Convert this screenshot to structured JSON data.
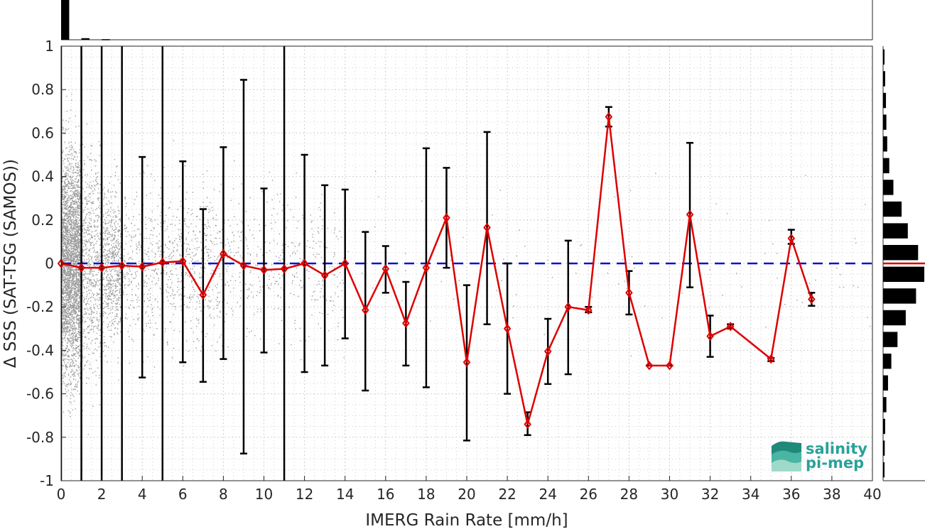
{
  "chart_data": {
    "type": "scatter",
    "xlabel": "IMERG Rain Rate [mm/h]",
    "ylabel": "Δ SSS (SAT-TSG (SAMOS))",
    "xlim": [
      0,
      40
    ],
    "ylim": [
      -1,
      1
    ],
    "xticks": [
      "0",
      "2",
      "4",
      "6",
      "8",
      "10",
      "12",
      "14",
      "16",
      "18",
      "20",
      "22",
      "24",
      "26",
      "28",
      "30",
      "32",
      "34",
      "36",
      "38",
      "40"
    ],
    "yticks": [
      "1",
      "0.8",
      "0.6",
      "0.4",
      "0.2",
      "0",
      "-0.2",
      "-0.4",
      "-0.6",
      "-0.8",
      "-1"
    ],
    "grid": true,
    "series": [
      {
        "role": "binned mean with std error bars",
        "color": "#dd0000",
        "x": [
          0,
          1,
          2,
          3,
          4,
          5,
          6,
          7,
          8,
          9,
          10,
          11,
          12,
          13,
          14,
          15,
          16,
          17,
          18,
          19,
          20,
          21,
          22,
          23,
          24,
          25,
          26,
          27,
          28,
          29,
          30,
          31,
          32,
          33,
          35,
          36,
          37
        ],
        "y": [
          0.0,
          -0.02,
          -0.02,
          -0.01,
          -0.015,
          0.005,
          0.01,
          -0.145,
          0.045,
          -0.01,
          -0.03,
          -0.025,
          0.0,
          -0.055,
          0.0,
          -0.215,
          -0.025,
          -0.275,
          -0.02,
          0.21,
          -0.455,
          0.165,
          -0.3,
          -0.74,
          -0.405,
          -0.2,
          -0.215,
          0.675,
          -0.135,
          -0.47,
          -0.47,
          0.225,
          -0.335,
          -0.29,
          -0.44,
          0.115,
          -0.165
        ],
        "upper": [
          1.0,
          1.0,
          1.0,
          1.0,
          0.49,
          1.0,
          0.47,
          0.25,
          0.535,
          0.845,
          0.345,
          1.0,
          0.5,
          0.36,
          0.34,
          0.145,
          0.08,
          -0.085,
          0.53,
          0.44,
          -0.1,
          0.605,
          0.0,
          -0.685,
          -0.255,
          0.105,
          -0.2,
          0.72,
          -0.035,
          -0.47,
          -0.47,
          0.555,
          -0.24,
          -0.28,
          -0.435,
          0.155,
          -0.135
        ],
        "lower": [
          -1.0,
          -1.0,
          -1.0,
          -1.0,
          -0.525,
          -1.0,
          -0.455,
          -0.545,
          -0.44,
          -0.875,
          -0.41,
          -1.0,
          -0.5,
          -0.47,
          -0.345,
          -0.585,
          -0.135,
          -0.47,
          -0.57,
          -0.02,
          -0.815,
          -0.28,
          -0.6,
          -0.79,
          -0.555,
          -0.51,
          -0.225,
          0.63,
          -0.235,
          -0.47,
          -0.47,
          -0.11,
          -0.43,
          -0.3,
          -0.45,
          0.09,
          -0.195
        ]
      },
      {
        "role": "zero reference line",
        "color": "#1111cc",
        "y": 0
      }
    ],
    "scatter_points": "dense grey point cloud of individual samples, concentrated at 0-2 mm/h, thinning out towards 12 mm/h, a few up to 40 mm/h",
    "top_histogram": {
      "bins_x": [
        0,
        1,
        2
      ],
      "relative_heights": [
        1.0,
        0.04,
        0.015
      ]
    },
    "right_histogram": {
      "bins_y": [
        0.95,
        0.85,
        0.75,
        0.65,
        0.55,
        0.45,
        0.35,
        0.25,
        0.15,
        0.05,
        -0.05,
        -0.15,
        -0.25,
        -0.35,
        -0.45,
        -0.55,
        -0.65,
        -0.75,
        -0.85,
        -0.95
      ],
      "relative_widths": [
        0.03,
        0.05,
        0.07,
        0.08,
        0.1,
        0.15,
        0.25,
        0.45,
        0.6,
        0.85,
        1.0,
        0.8,
        0.55,
        0.35,
        0.2,
        0.12,
        0.08,
        0.05,
        0.04,
        0.02
      ],
      "median_line_color": "#dd0000"
    }
  },
  "logo": {
    "line1": "salinity",
    "line2": "pi-mep",
    "color": "#2aa198"
  }
}
